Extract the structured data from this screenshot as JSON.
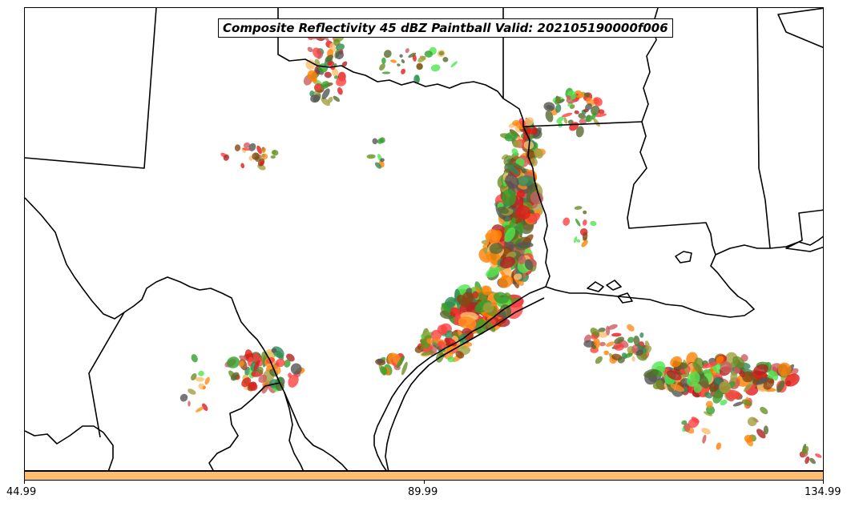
{
  "title": "Composite Reflectivity 45 dBZ Paintball Valid: 202105190000f006",
  "colorbar": {
    "color": "#fdbf6f",
    "tick_labels": [
      "44.99",
      "89.99",
      "134.99"
    ]
  },
  "member_colors": [
    "#e31a1c",
    "#ff7f00",
    "#fdbf6f",
    "#33a02c",
    "#4de64d",
    "#6b8e23",
    "#a0a040",
    "#b22222",
    "#cd5c5c",
    "#556b2f",
    "#ff4040",
    "#555555",
    "#8b4513",
    "#2e8b57",
    "#ff8c1a"
  ]
}
